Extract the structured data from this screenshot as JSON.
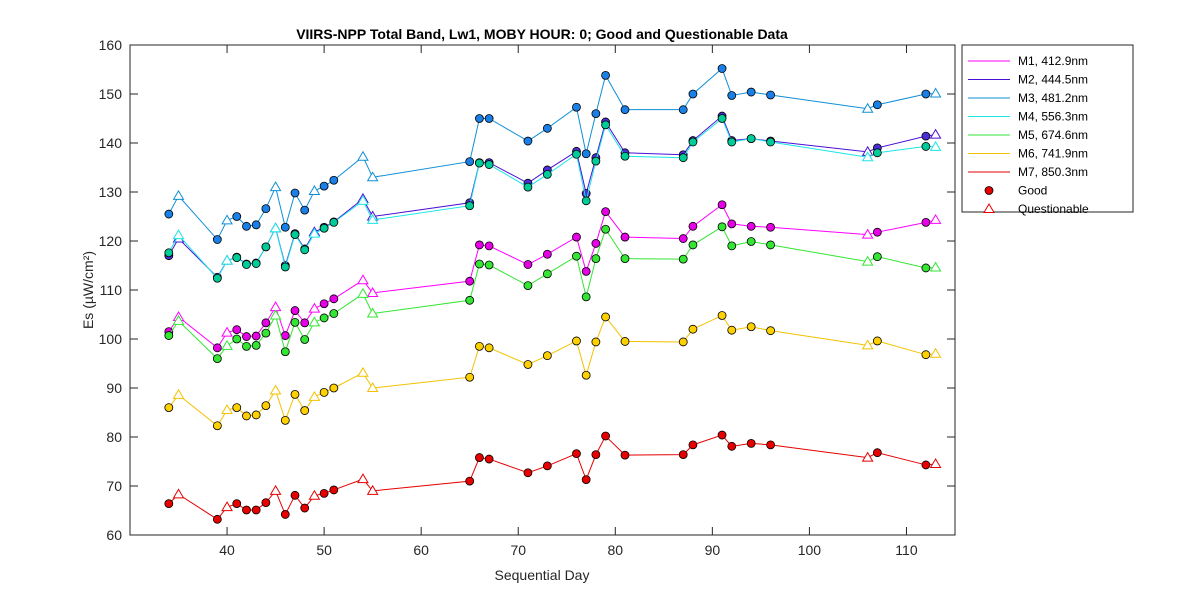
{
  "chart_data": {
    "type": "line",
    "title": "VIIRS-NPP Total Band,  Lw1, MOBY HOUR: 0;  Good and Questionable Data",
    "xlabel": "Sequential Day",
    "ylabel": "Es (µW/cm²)",
    "xlim": [
      30,
      115
    ],
    "ylim": [
      60,
      160
    ],
    "xticks": [
      40,
      50,
      60,
      70,
      80,
      90,
      100,
      110
    ],
    "yticks": [
      60,
      70,
      80,
      90,
      100,
      110,
      120,
      130,
      140,
      150,
      160
    ],
    "grid": false,
    "legend_position": "outside-top-right",
    "x": [
      34,
      35,
      39,
      40,
      41,
      42,
      43,
      44,
      45,
      46,
      47,
      48,
      49,
      50,
      51,
      54,
      55,
      65,
      66,
      67,
      71,
      73,
      76,
      77,
      78,
      79,
      81,
      87,
      88,
      91,
      92,
      94,
      96,
      106,
      107,
      112,
      113
    ],
    "quality": [
      "G",
      "Q",
      "G",
      "Q",
      "G",
      "G",
      "G",
      "G",
      "Q",
      "G",
      "G",
      "G",
      "Q",
      "G",
      "G",
      "Q",
      "Q",
      "G",
      "G",
      "G",
      "G",
      "G",
      "G",
      "G",
      "G",
      "G",
      "G",
      "G",
      "G",
      "G",
      "G",
      "G",
      "G",
      "Q",
      "G",
      "G",
      "Q"
    ],
    "legend_markers": {
      "good": "Good",
      "questionable": "Questionable"
    },
    "series": [
      {
        "name": "M1, 412.9nm",
        "color": "#ff00ff",
        "marker_color": "#e600e6",
        "values": [
          101.5,
          104.5,
          98.2,
          101.3,
          101.9,
          100.5,
          100.6,
          103.3,
          106.5,
          100.7,
          105.8,
          103.3,
          106.2,
          107.2,
          108.2,
          112.0,
          109.4,
          111.8,
          119.2,
          119.0,
          115.2,
          117.3,
          120.8,
          113.8,
          119.5,
          126.0,
          120.8,
          120.5,
          123.0,
          127.4,
          123.5,
          123.0,
          122.8,
          121.3,
          121.8,
          123.8,
          124.3
        ]
      },
      {
        "name": "M2, 444.5nm",
        "color": "#4b0fd6",
        "marker_color": "#4a2ed6",
        "values": [
          117.0,
          120.5,
          112.6,
          116.0,
          116.7,
          115.3,
          115.5,
          118.8,
          122.6,
          115.0,
          121.5,
          118.4,
          121.8,
          122.8,
          123.9,
          128.6,
          125.0,
          127.8,
          136.0,
          136.0,
          131.8,
          134.5,
          138.3,
          129.7,
          137.0,
          144.3,
          138.0,
          137.6,
          140.5,
          145.5,
          140.5,
          140.9,
          140.4,
          138.2,
          139.0,
          141.4,
          141.7
        ]
      },
      {
        "name": "M3, 481.2nm",
        "color": "#0f8fd6",
        "marker_color": "#1a7fe6",
        "values": [
          125.5,
          129.2,
          120.3,
          124.2,
          125.0,
          123.0,
          123.3,
          126.6,
          131.0,
          122.8,
          129.8,
          126.3,
          130.2,
          131.2,
          132.4,
          137.2,
          133.0,
          136.2,
          145.0,
          145.0,
          140.4,
          143.0,
          147.3,
          137.8,
          146.0,
          153.8,
          146.8,
          146.8,
          150.0,
          155.2,
          149.7,
          150.4,
          149.8,
          147.0,
          147.8,
          150.0,
          150.1
        ]
      },
      {
        "name": "M4, 556.3nm",
        "color": "#1ae6e6",
        "marker_color": "#00cc99",
        "values": [
          117.6,
          121.2,
          112.4,
          116.0,
          116.6,
          115.2,
          115.4,
          118.8,
          122.6,
          114.7,
          121.3,
          118.2,
          121.5,
          122.6,
          123.8,
          128.2,
          124.3,
          127.2,
          135.9,
          135.6,
          131.0,
          133.6,
          137.7,
          128.2,
          136.3,
          143.7,
          137.3,
          137.0,
          140.2,
          145.0,
          140.2,
          140.9,
          140.2,
          137.1,
          138.0,
          139.3,
          139.2
        ]
      },
      {
        "name": "M5, 674.6nm",
        "color": "#33e633",
        "marker_color": "#33e633",
        "values": [
          100.7,
          103.7,
          96.0,
          98.6,
          100.0,
          98.5,
          98.7,
          101.2,
          104.8,
          97.4,
          103.4,
          99.9,
          103.4,
          104.3,
          105.2,
          109.2,
          105.2,
          107.9,
          115.3,
          115.1,
          110.9,
          113.3,
          116.9,
          108.6,
          116.4,
          122.4,
          116.4,
          116.3,
          119.2,
          122.9,
          119.0,
          119.9,
          119.2,
          115.8,
          116.8,
          114.5,
          114.6
        ]
      },
      {
        "name": "M6, 741.9nm",
        "color": "#f2c200",
        "marker_color": "#ffd000",
        "values": [
          86.0,
          88.6,
          82.3,
          85.5,
          86.0,
          84.3,
          84.5,
          86.4,
          89.5,
          83.4,
          88.7,
          85.4,
          88.2,
          89.1,
          90.0,
          93.1,
          90.0,
          92.2,
          98.5,
          98.2,
          94.8,
          96.6,
          99.6,
          92.6,
          99.4,
          104.5,
          99.5,
          99.4,
          102.0,
          104.8,
          101.8,
          102.5,
          101.7,
          98.7,
          99.6,
          96.8,
          97.0
        ]
      },
      {
        "name": "M7, 850.3nm",
        "color": "#e60000",
        "marker_color": "#e60000",
        "values": [
          66.4,
          68.3,
          63.2,
          65.7,
          66.4,
          65.1,
          65.1,
          66.6,
          69.0,
          64.2,
          68.1,
          65.5,
          68.0,
          68.5,
          69.2,
          71.4,
          69.0,
          71.0,
          75.8,
          75.5,
          72.7,
          74.1,
          76.6,
          71.3,
          76.4,
          80.2,
          76.3,
          76.4,
          78.4,
          80.4,
          78.1,
          78.7,
          78.4,
          75.8,
          76.8,
          74.3,
          74.5
        ]
      }
    ]
  }
}
